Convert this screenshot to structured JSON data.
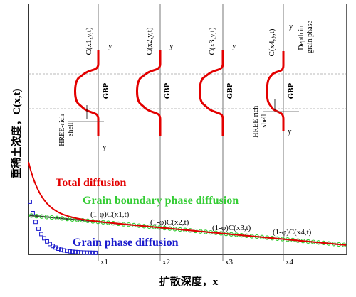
{
  "axes": {
    "ylabel": "重稀土浓度，C(x,t)",
    "xlabel": "扩散深度，x",
    "xticks": [
      "x1",
      "x2",
      "x3",
      "x4"
    ]
  },
  "profiles": [
    {
      "name": "C(x1,y,t)",
      "sub": "1"
    },
    {
      "name": "C(x2,y,t)",
      "sub": "2"
    },
    {
      "name": "C(x3,y,t)",
      "sub": "3"
    },
    {
      "name": "C(x4,y,t)",
      "sub": "4"
    }
  ],
  "insets": {
    "y_label": "y",
    "gbp_label": "GBP",
    "shell_label": "HREE-rich\nshell",
    "depth_label": "Depth in\ngrain phase"
  },
  "curves": {
    "total": {
      "label": "Total diffusion",
      "color": "#e30000"
    },
    "gbp": {
      "label": "Grain boundary phase diffusion",
      "color": "#33cc33"
    },
    "grain": {
      "label": "Grain phase diffusion",
      "color": "#1a1acc"
    }
  },
  "annotations": [
    "(1-φ)C(x1,t)",
    "(1-φ)C(x2,t)",
    "(1-φ)C(x3,t)",
    "(1-φ)C(x4,t)"
  ],
  "colors": {
    "axis": "#000000",
    "profile": "#e30000",
    "grid": "#555555"
  }
}
